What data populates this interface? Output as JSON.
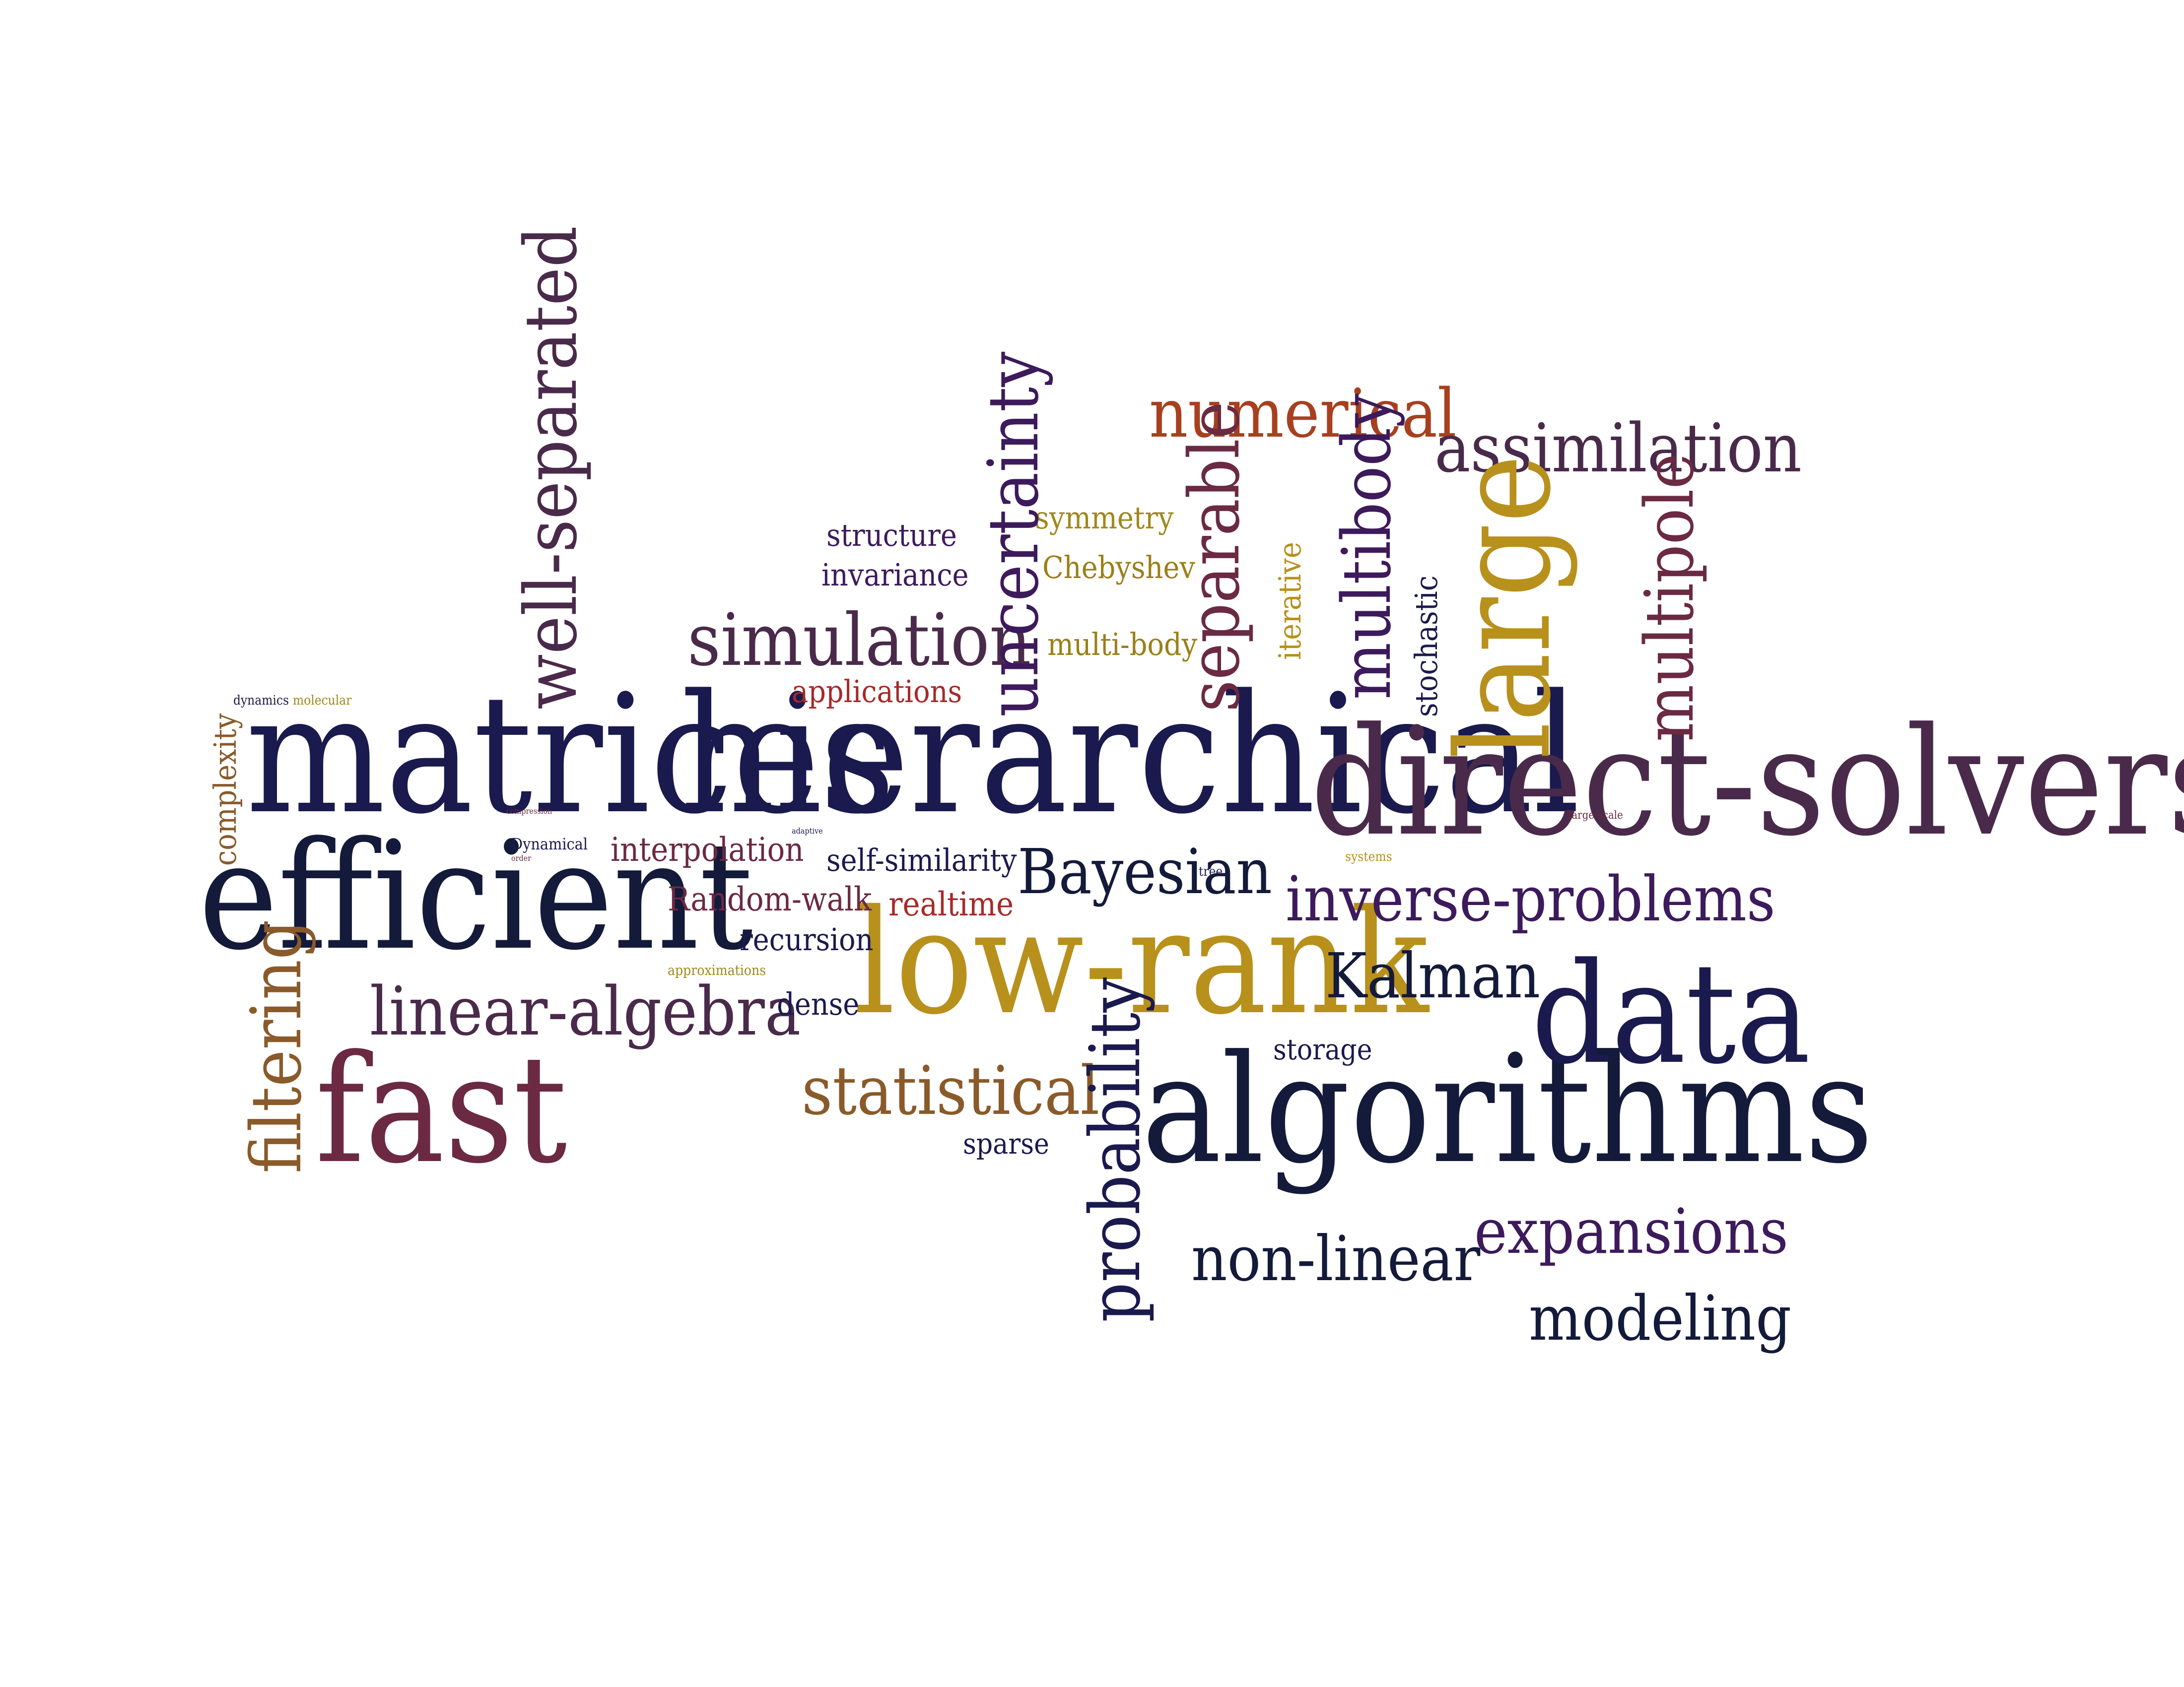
{
  "colors": {
    "navy": "#1a1a4e",
    "dark_navy": "#141a3a",
    "purple": "#3d1a5c",
    "plum": "#4a2a4a",
    "maroon": "#6b2a42",
    "rust": "#a8401f",
    "red": "#a62a2a",
    "brown": "#8a5a2a",
    "olive_gold": "#9a8018",
    "gold": "#b8901c",
    "mustard": "#a0881c",
    "dark_brown": "#5a2a2a"
  },
  "words": [
    {
      "id": "matrices",
      "text": "matrices",
      "color": "navy"
    },
    {
      "id": "hierarchical",
      "text": "hierarchical",
      "color": "navy"
    },
    {
      "id": "direct-solvers",
      "text": "direct-solvers",
      "color": "plum"
    },
    {
      "id": "efficient",
      "text": "efficient",
      "color": "dark_navy"
    },
    {
      "id": "low-rank",
      "text": "low-rank",
      "color": "gold"
    },
    {
      "id": "algorithms",
      "text": "algorithms",
      "color": "dark_navy"
    },
    {
      "id": "fast",
      "text": "fast",
      "color": "maroon"
    },
    {
      "id": "data",
      "text": "data",
      "color": "navy"
    },
    {
      "id": "large",
      "text": "large",
      "color": "gold"
    },
    {
      "id": "well-separated",
      "text": "well-separated",
      "color": "plum"
    },
    {
      "id": "uncertainty",
      "text": "uncertainty",
      "color": "purple"
    },
    {
      "id": "numerical",
      "text": "numerical",
      "color": "rust"
    },
    {
      "id": "assimilation",
      "text": "assimilation",
      "color": "plum"
    },
    {
      "id": "separable",
      "text": "separable",
      "color": "maroon"
    },
    {
      "id": "multibody",
      "text": "multibody",
      "color": "purple"
    },
    {
      "id": "multipole",
      "text": "multipole",
      "color": "maroon"
    },
    {
      "id": "simulation",
      "text": "simulation",
      "color": "plum"
    },
    {
      "id": "structure",
      "text": "structure",
      "color": "purple"
    },
    {
      "id": "invariance",
      "text": "invariance",
      "color": "purple"
    },
    {
      "id": "symmetry",
      "text": "symmetry",
      "color": "mustard"
    },
    {
      "id": "chebyshev",
      "text": "Chebyshev",
      "color": "olive_gold"
    },
    {
      "id": "multi-body",
      "text": "multi-body",
      "color": "olive_gold"
    },
    {
      "id": "iterative",
      "text": "iterative",
      "color": "gold"
    },
    {
      "id": "stochastic",
      "text": "stochastic",
      "color": "navy"
    },
    {
      "id": "applications",
      "text": "applications",
      "color": "red"
    },
    {
      "id": "dynamics",
      "text": "dynamics",
      "color": "navy"
    },
    {
      "id": "molecular",
      "text": "molecular",
      "color": "mustard"
    },
    {
      "id": "complexity",
      "text": "complexity",
      "color": "brown"
    },
    {
      "id": "interpolation",
      "text": "interpolation",
      "color": "maroon"
    },
    {
      "id": "self-similarity",
      "text": "self-similarity",
      "color": "navy"
    },
    {
      "id": "bayesian",
      "text": "Bayesian",
      "color": "dark_navy"
    },
    {
      "id": "inverse-problems",
      "text": "inverse-problems",
      "color": "purple"
    },
    {
      "id": "random-walk",
      "text": "Random-walk",
      "color": "maroon"
    },
    {
      "id": "realtime",
      "text": "realtime",
      "color": "red"
    },
    {
      "id": "recursion",
      "text": "recursion",
      "color": "navy"
    },
    {
      "id": "kalman",
      "text": "Kalman",
      "color": "dark_navy"
    },
    {
      "id": "linear-algebra",
      "text": "linear-algebra",
      "color": "plum"
    },
    {
      "id": "filtering",
      "text": "filtering",
      "color": "brown"
    },
    {
      "id": "dense",
      "text": "dense",
      "color": "navy"
    },
    {
      "id": "approximations",
      "text": "approximations",
      "color": "mustard"
    },
    {
      "id": "statistical",
      "text": "statistical",
      "color": "brown"
    },
    {
      "id": "storage",
      "text": "storage",
      "color": "navy"
    },
    {
      "id": "probability",
      "text": "probability",
      "color": "navy"
    },
    {
      "id": "sparse",
      "text": "sparse",
      "color": "navy"
    },
    {
      "id": "non-linear",
      "text": "non-linear",
      "color": "dark_navy"
    },
    {
      "id": "expansions",
      "text": "expansions",
      "color": "purple"
    },
    {
      "id": "modeling",
      "text": "modeling",
      "color": "dark_navy"
    },
    {
      "id": "dynamical",
      "text": "Dynamical",
      "color": "navy"
    },
    {
      "id": "compression",
      "text": "compression",
      "color": "maroon"
    },
    {
      "id": "order",
      "text": "order",
      "color": "maroon"
    },
    {
      "id": "adaptive",
      "text": "adaptive",
      "color": "navy"
    },
    {
      "id": "tree",
      "text": "tree",
      "color": "navy"
    },
    {
      "id": "systems",
      "text": "systems",
      "color": "gold"
    },
    {
      "id": "large-scale",
      "text": "large-scale",
      "color": "maroon"
    }
  ]
}
